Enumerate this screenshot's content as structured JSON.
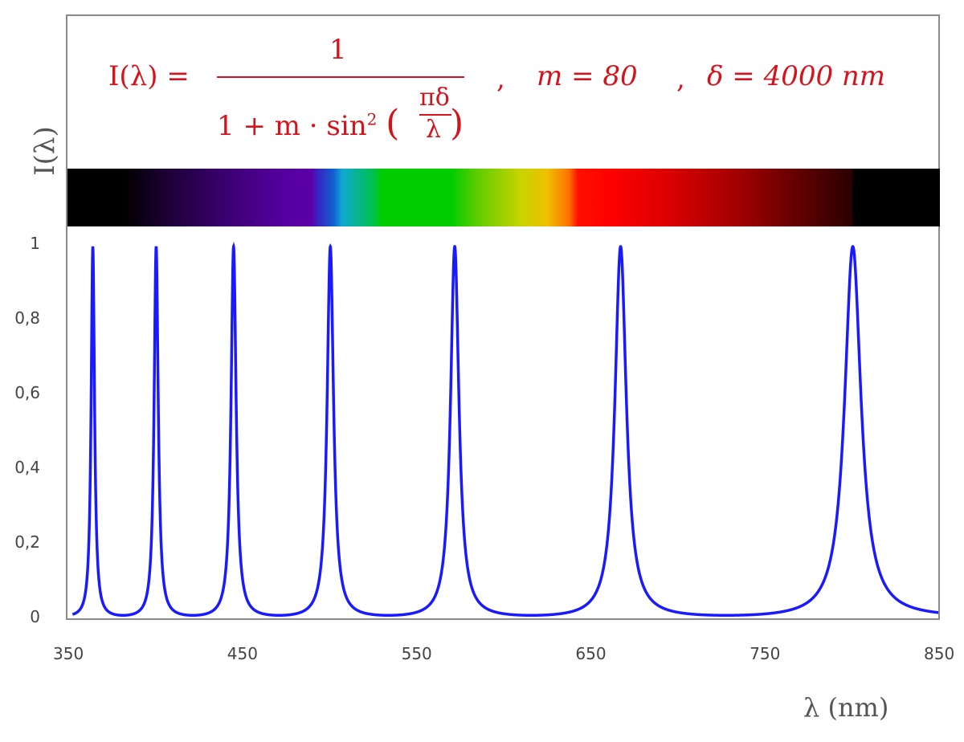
{
  "chart_data": {
    "type": "line",
    "title": "",
    "formula": {
      "lhs": "I(λ) =",
      "numerator": "1",
      "denominator": "1 + m · sin² (πδ/λ)",
      "den_prefix": "1 + m · sin",
      "den_sup": "2",
      "den_frac_num": "πδ",
      "den_frac_den": "λ",
      "param_m": "m = 80",
      "param_delta": "δ = 4000 nm",
      "sep": ","
    },
    "parameters": {
      "m": 80,
      "delta_nm": 4000
    },
    "xlabel": "λ (nm)",
    "ylabel": "I(λ)",
    "xlim": [
      350,
      850
    ],
    "ylim": [
      0,
      1
    ],
    "x_ticks": [
      "350",
      "450",
      "550",
      "650",
      "750",
      "850"
    ],
    "y_ticks": [
      "0",
      "0,2",
      "0,4",
      "0,6",
      "0,8",
      "1"
    ],
    "peaks_nm": [
      363.6,
      400,
      444.4,
      500,
      571.4,
      666.7,
      800
    ],
    "series": [
      {
        "color": "#1a1aff",
        "expression": "1/(1+80*sin^2(pi*4000/λ))"
      }
    ],
    "spectrum_colors": [
      "#000000",
      "#5500a0",
      "#10a8d0",
      "#00cc00",
      "#e0d000",
      "#ff0000",
      "#600000",
      "#000000"
    ],
    "formula_color": "#d4141c",
    "grid": false
  }
}
